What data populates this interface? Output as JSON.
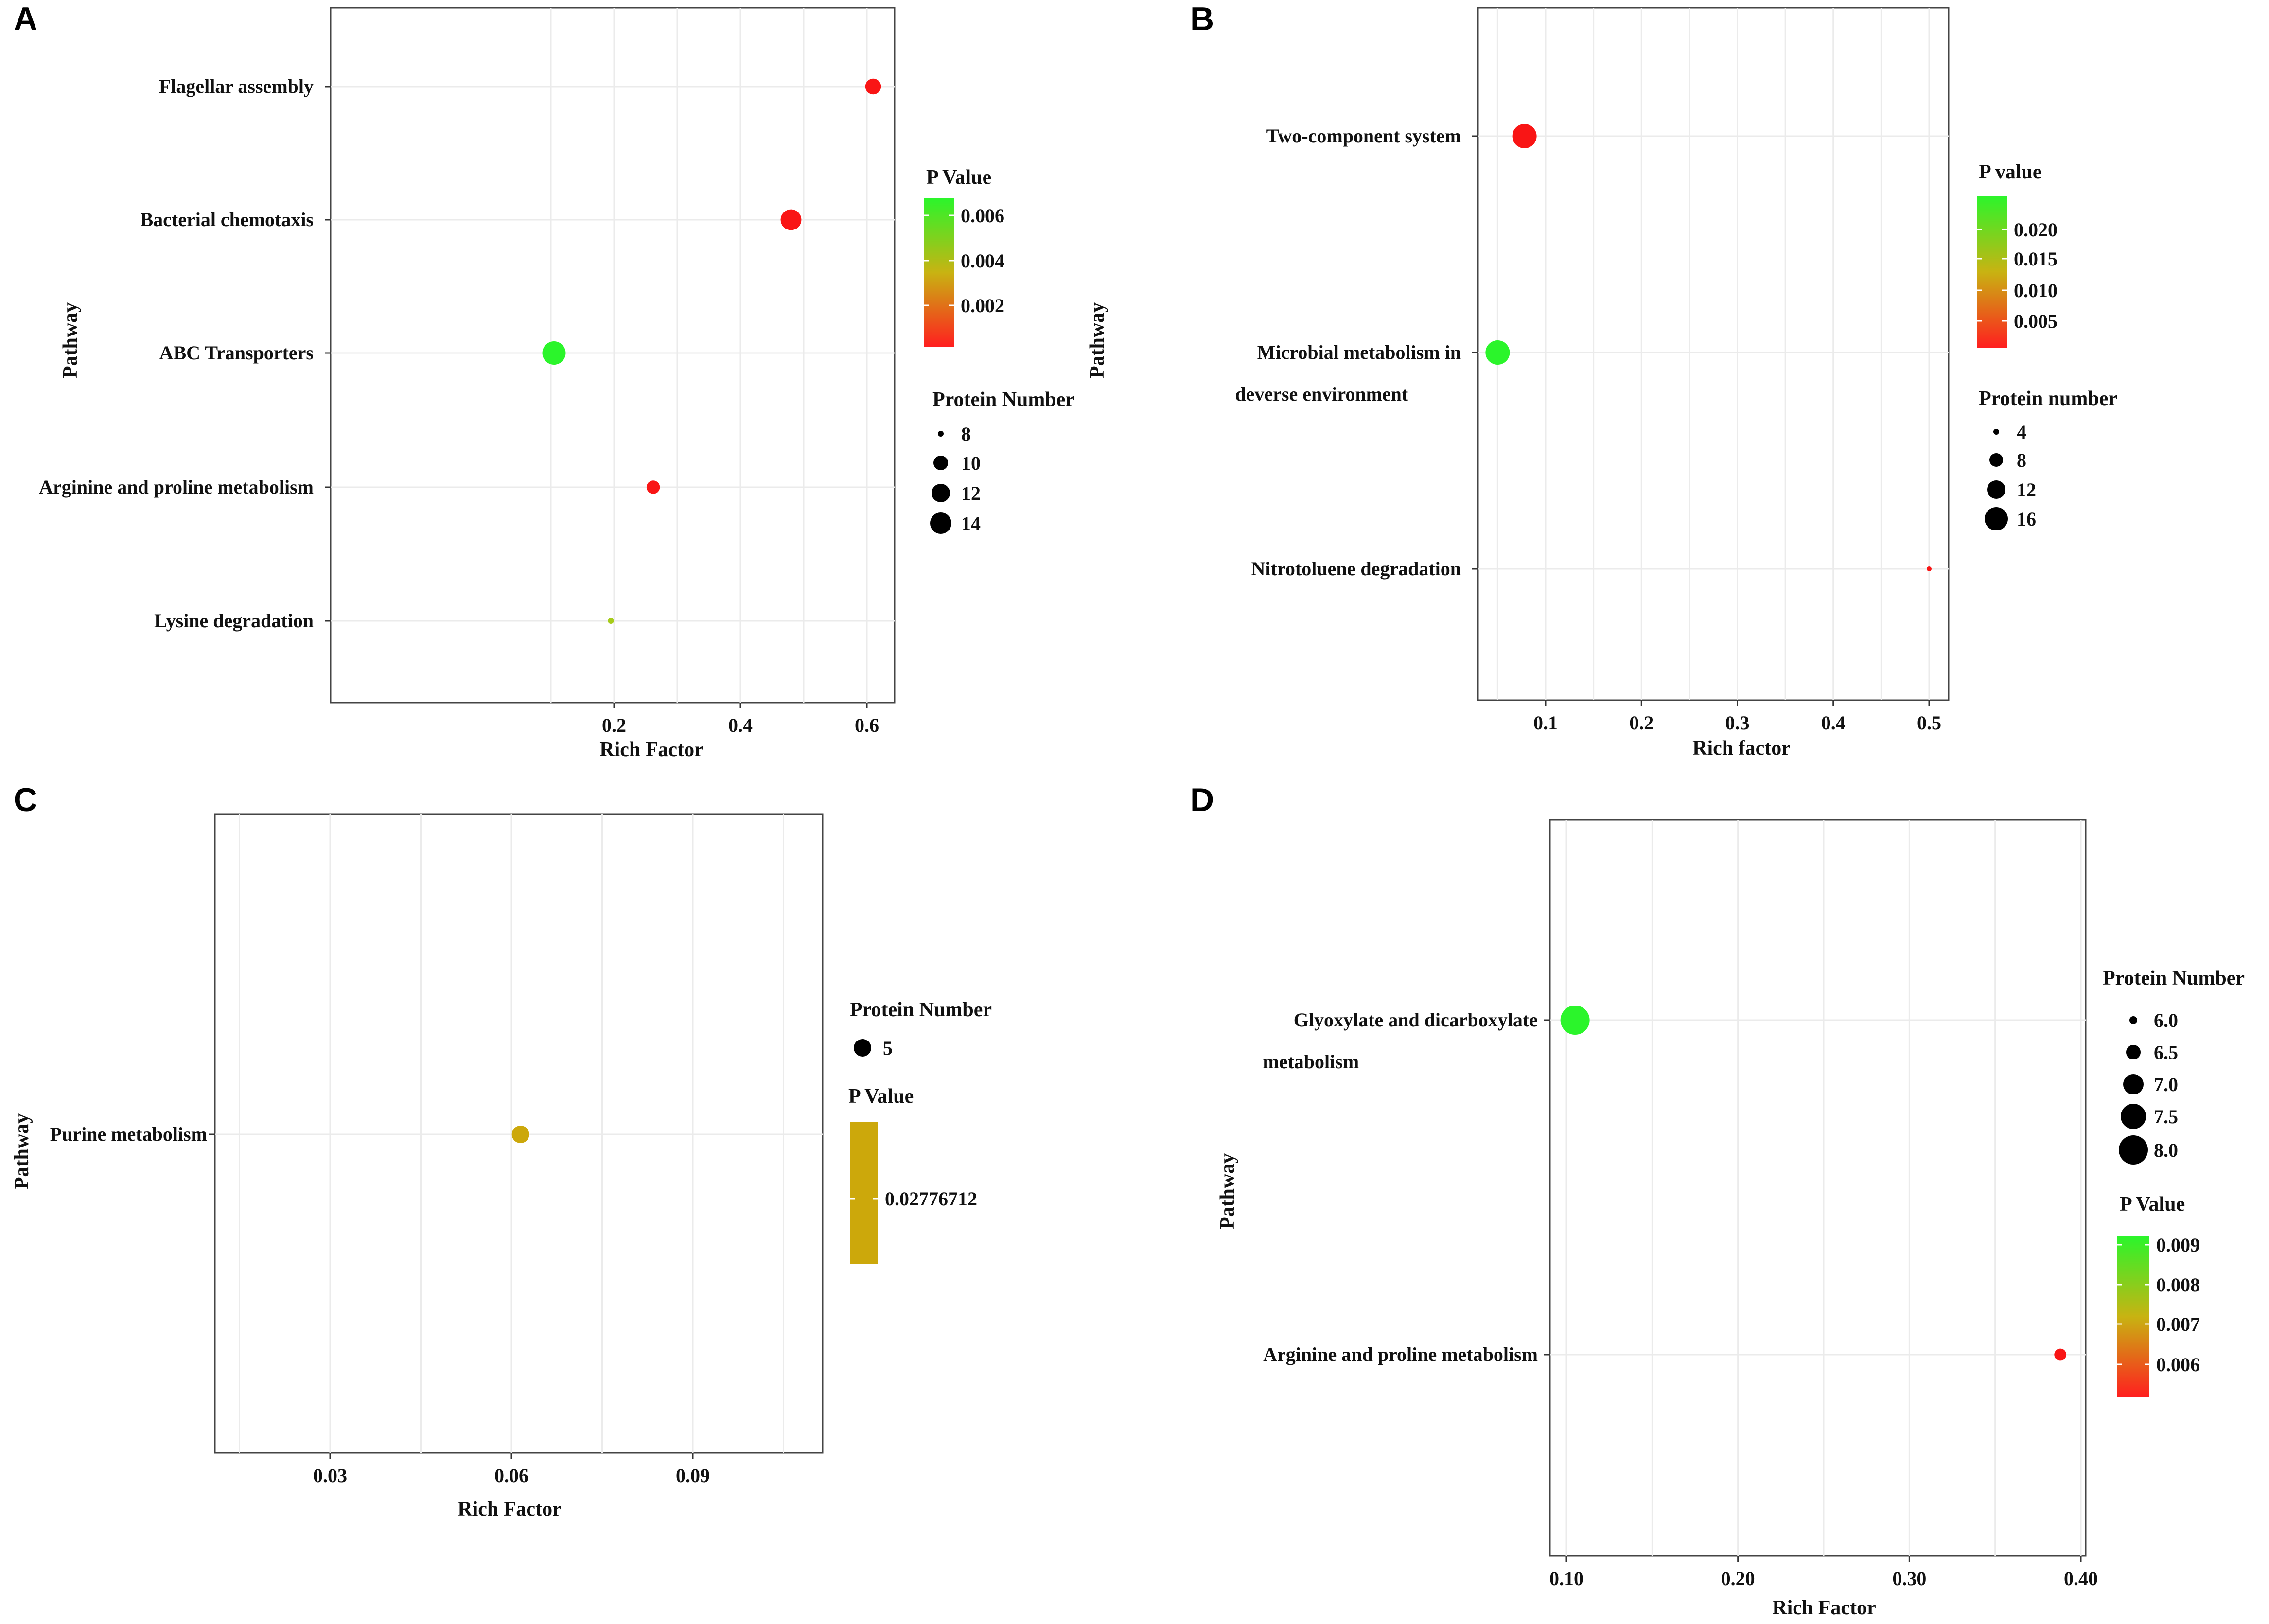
{
  "chart_data": [
    {
      "panel": "A",
      "type": "scatter",
      "xlabel": "Rich Factor",
      "ylabel": "Pathway",
      "x_ticks": [
        "0.2",
        "0.4",
        "0.6"
      ],
      "categories": [
        "Flagellar assembly",
        "Bacterial chemotaxis",
        "ABC Transporters",
        "Arginine and proline metabolism",
        "Lysine degradation"
      ],
      "points": [
        {
          "pathway": "Flagellar assembly",
          "rich_factor": 0.61,
          "p_value": 0.0001,
          "protein_number": 12,
          "color": "#f91515"
        },
        {
          "pathway": "Bacterial chemotaxis",
          "rich_factor": 0.48,
          "p_value": 0.0001,
          "protein_number": 14,
          "color": "#f91515"
        },
        {
          "pathway": "ABC Transporters",
          "rich_factor": 0.105,
          "p_value": 0.0068,
          "protein_number": 15,
          "color": "#2bf52b"
        },
        {
          "pathway": "Arginine and proline metabolism",
          "rich_factor": 0.262,
          "p_value": 0.0001,
          "protein_number": 11,
          "color": "#f91515"
        },
        {
          "pathway": "Lysine degradation",
          "rich_factor": 0.195,
          "p_value": 0.005,
          "protein_number": 8,
          "color": "#a6cc1a"
        }
      ],
      "color_legend": {
        "title": "P Value",
        "ticks": [
          "0.006",
          "0.004",
          "0.002"
        ],
        "high_color": "#2bf52b",
        "mid_color": "#c8b312",
        "low_color": "#ff1f1f"
      },
      "size_legend": {
        "title": "Protein Number",
        "values": [
          "8",
          "10",
          "12",
          "14"
        ]
      }
    },
    {
      "panel": "B",
      "type": "scatter",
      "xlabel": "Rich factor",
      "ylabel": "Pathway",
      "x_ticks": [
        "0.1",
        "0.2",
        "0.3",
        "0.4",
        "0.5"
      ],
      "categories": [
        "Two-component system",
        "Microbial metabolism in deverse environment",
        "Nitrotoluene degradation"
      ],
      "category_lines": [
        [
          "Two-component system"
        ],
        [
          "Microbial metabolism in",
          "deverse environment"
        ],
        [
          "Nitrotoluene degradation"
        ]
      ],
      "points": [
        {
          "pathway": "Two-component system",
          "rich_factor": 0.078,
          "p_value": 0.001,
          "protein_number": 16,
          "color": "#f91515"
        },
        {
          "pathway": "Microbial metabolism in deverse environment",
          "rich_factor": 0.05,
          "p_value": 0.022,
          "protein_number": 16,
          "color": "#2bf52b"
        },
        {
          "pathway": "Nitrotoluene degradation",
          "rich_factor": 0.5,
          "p_value": 0.001,
          "protein_number": 3,
          "color": "#f91515"
        }
      ],
      "color_legend": {
        "title": "P value",
        "ticks": [
          "0.020",
          "0.015",
          "0.010",
          "0.005"
        ],
        "high_color": "#2bf52b",
        "mid_color": "#c8b312",
        "low_color": "#ff1f1f"
      },
      "size_legend": {
        "title": "Protein number",
        "values": [
          "4",
          "8",
          "12",
          "16"
        ]
      }
    },
    {
      "panel": "C",
      "type": "scatter",
      "xlabel": "Rich Factor",
      "ylabel": "Pathway",
      "x_ticks": [
        "0.03",
        "0.06",
        "0.09"
      ],
      "categories": [
        "Purine metabolism"
      ],
      "points": [
        {
          "pathway": "Purine metabolism",
          "rich_factor": 0.0615,
          "p_value": 0.02776712,
          "protein_number": 5,
          "color": "#cca80b"
        }
      ],
      "size_legend": {
        "title": "Protein Number",
        "values": [
          "5"
        ]
      },
      "color_legend": {
        "title": "P Value",
        "ticks": [
          "0.02776712"
        ],
        "high_color": "#cca80b",
        "mid_color": "#cca80b",
        "low_color": "#cca80b"
      }
    },
    {
      "panel": "D",
      "type": "scatter",
      "xlabel": "Rich Factor",
      "ylabel": "Pathway",
      "x_ticks": [
        "0.10",
        "0.20",
        "0.30",
        "0.40"
      ],
      "categories": [
        "Glyoxylate and dicarboxylate metabolism",
        "Arginine and proline metabolism"
      ],
      "category_lines": [
        [
          "Glyoxylate and dicarboxylate",
          "metabolism"
        ],
        [
          "Arginine and proline metabolism"
        ]
      ],
      "points": [
        {
          "pathway": "Glyoxylate and dicarboxylate metabolism",
          "rich_factor": 0.105,
          "p_value": 0.0093,
          "protein_number": 8,
          "color": "#2bf52b"
        },
        {
          "pathway": "Arginine and proline metabolism",
          "rich_factor": 0.388,
          "p_value": 0.0055,
          "protein_number": 6,
          "color": "#f91515"
        }
      ],
      "size_legend": {
        "title": "Protein Number",
        "values": [
          "6.0",
          "6.5",
          "7.0",
          "7.5",
          "8.0"
        ]
      },
      "color_legend": {
        "title": "P Value",
        "ticks": [
          "0.009",
          "0.008",
          "0.007",
          "0.006"
        ],
        "high_color": "#2bf52b",
        "mid_color": "#c8b312",
        "low_color": "#ff1f1f"
      }
    }
  ]
}
